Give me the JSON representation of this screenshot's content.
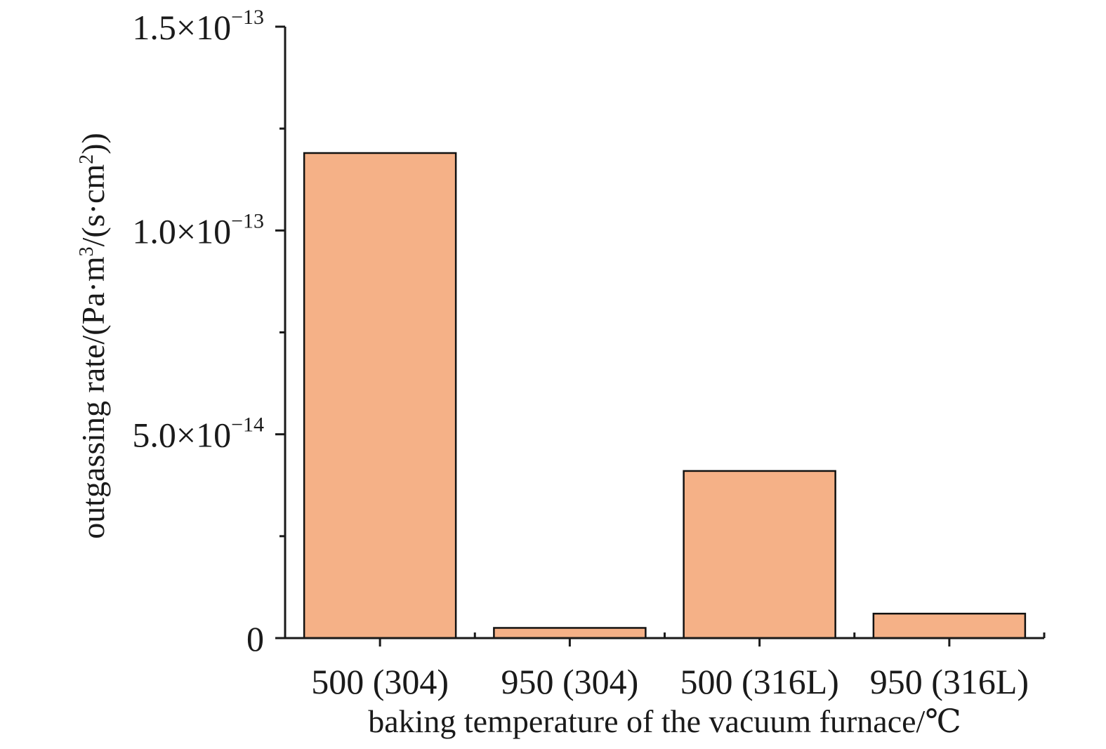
{
  "chart_data": {
    "type": "bar",
    "categories": [
      "500 (304)",
      "950 (304)",
      "500 (316L)",
      "950 (316L)"
    ],
    "values": [
      1.19e-13,
      2.5e-15,
      4.1e-14,
      6e-15
    ],
    "xlabel": "baking temperature of the vacuum furnace/℃",
    "ylabel_parts": {
      "prefix": "outgassing rate/(Pa·m",
      "sup1": "3",
      "middle": "/(s·cm",
      "sup2": "2",
      "suffix": "))"
    },
    "ylim": [
      0,
      1.5e-13
    ],
    "yticks": [
      {
        "value": 0,
        "mantissa": "0",
        "exponent": ""
      },
      {
        "value": 5e-14,
        "mantissa": "5.0×10",
        "exponent": "−14"
      },
      {
        "value": 1e-13,
        "mantissa": "1.0×10",
        "exponent": "−13"
      },
      {
        "value": 1.5e-13,
        "mantissa": "1.5×10",
        "exponent": "−13"
      }
    ],
    "minor_yticks": [
      2.5e-14,
      7.5e-14,
      1.25e-13
    ],
    "bar_color": "#f5b187",
    "bar_edge_color": "#111111",
    "grid": false,
    "legend": "none"
  }
}
